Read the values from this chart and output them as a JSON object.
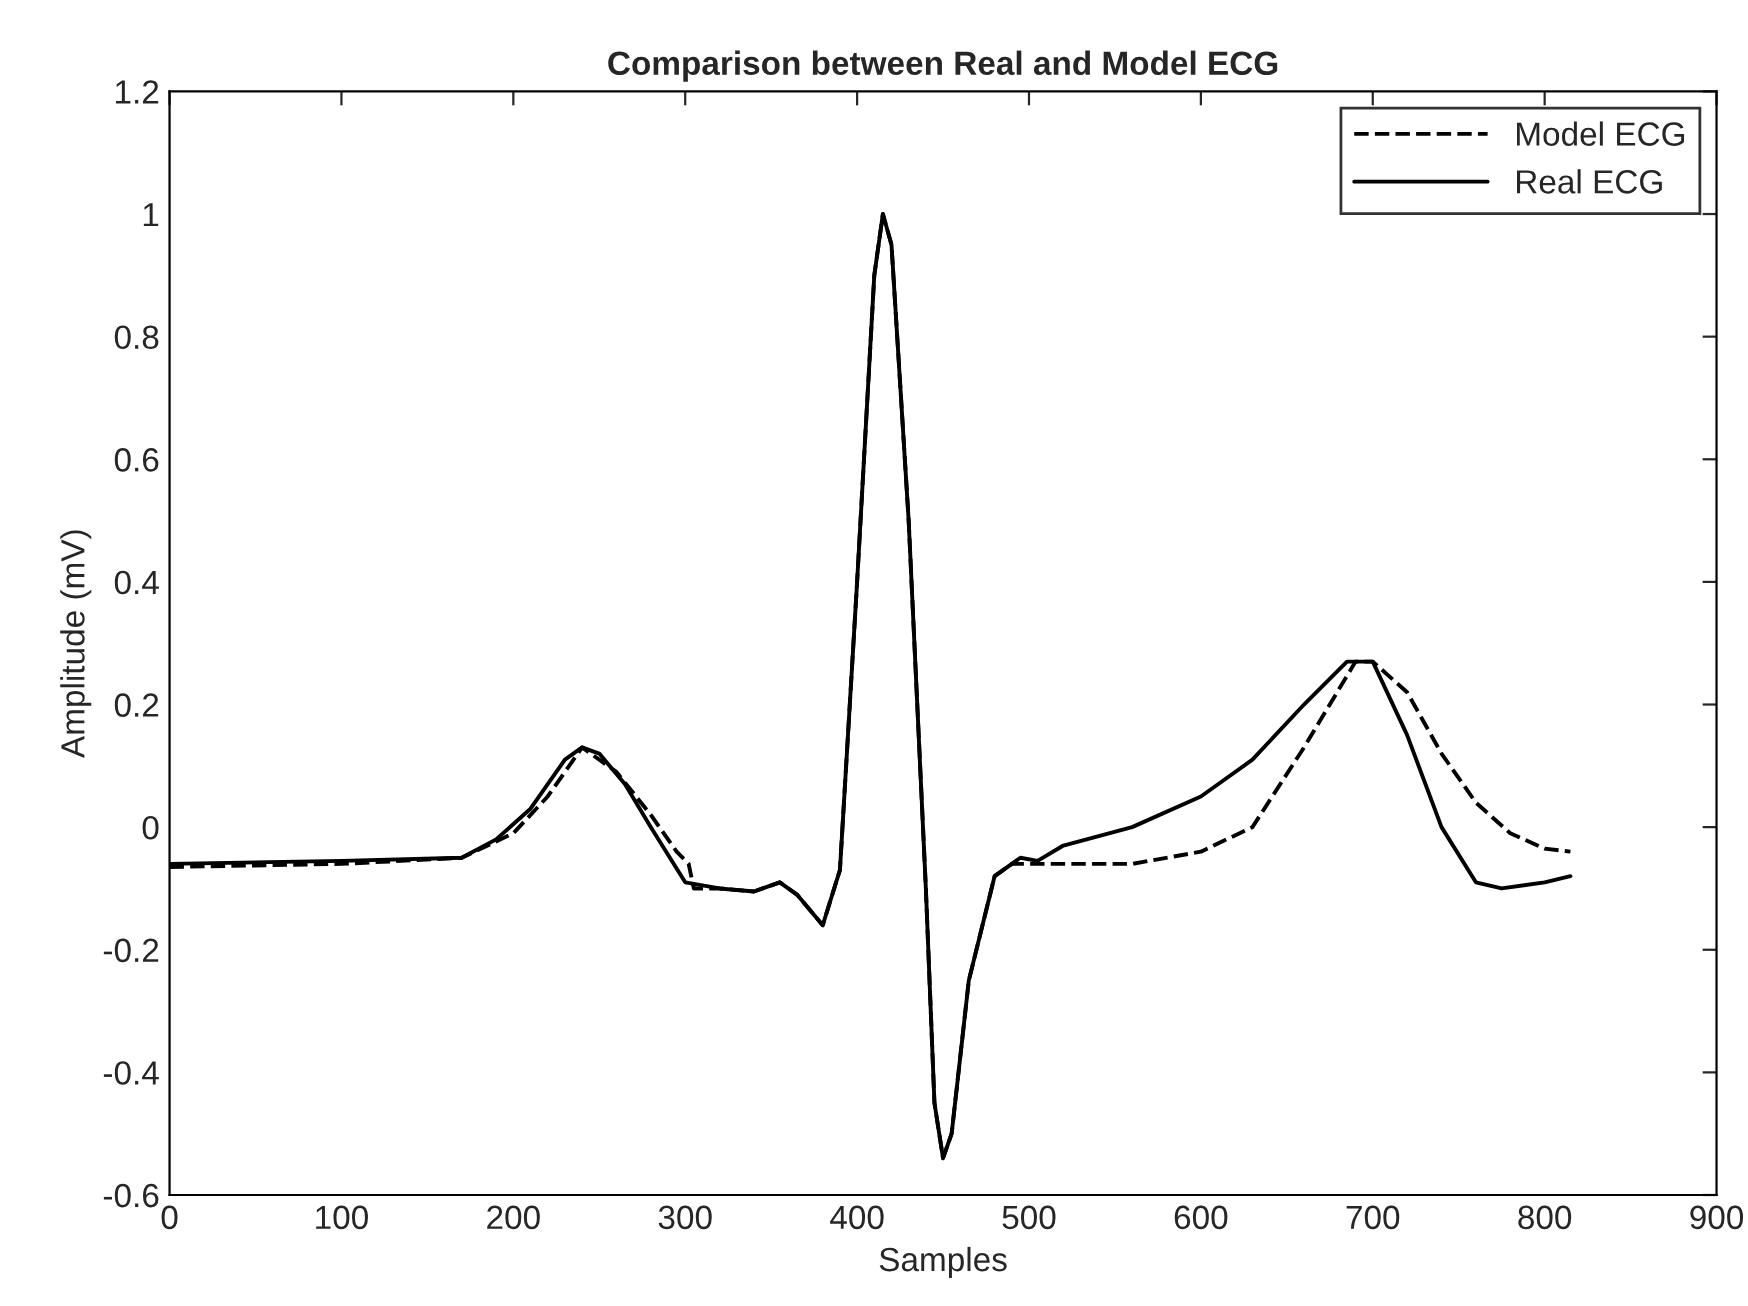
{
  "chart_data": {
    "type": "line",
    "title": "Comparison between Real and Model ECG",
    "xlabel": "Samples",
    "ylabel": "Amplitude (mV)",
    "xlim": [
      0,
      900
    ],
    "xticks": [
      0,
      100,
      200,
      300,
      400,
      500,
      600,
      700,
      800,
      900
    ],
    "ylim": [
      -0.6,
      1.2
    ],
    "yticks": [
      -0.6,
      -0.4,
      -0.2,
      0,
      0.2,
      0.4,
      0.6,
      0.8,
      1,
      1.2
    ],
    "grid": false,
    "legend": "top right",
    "marker": "none",
    "series": [
      {
        "name": "Model ECG",
        "color": "#000000",
        "line_style": "dashed",
        "x": [
          0,
          100,
          170,
          200,
          220,
          240,
          260,
          280,
          295,
          302,
          305,
          320,
          340,
          355,
          365,
          380,
          390,
          400,
          410,
          415,
          420,
          430,
          440,
          445,
          450,
          455,
          465,
          480,
          490,
          520,
          560,
          600,
          630,
          660,
          690,
          700,
          720,
          740,
          760,
          780,
          800,
          815
        ],
        "values": [
          -0.065,
          -0.06,
          -0.05,
          -0.01,
          0.05,
          0.13,
          0.09,
          0.02,
          -0.04,
          -0.06,
          -0.1,
          -0.1,
          -0.105,
          -0.09,
          -0.11,
          -0.16,
          -0.07,
          0.4,
          0.9,
          1.0,
          0.95,
          0.5,
          -0.1,
          -0.45,
          -0.54,
          -0.5,
          -0.25,
          -0.08,
          -0.06,
          -0.06,
          -0.06,
          -0.04,
          0.0,
          0.13,
          0.27,
          0.27,
          0.22,
          0.12,
          0.04,
          -0.01,
          -0.035,
          -0.04
        ]
      },
      {
        "name": "Real ECG",
        "color": "#000000",
        "line_style": "solid",
        "x": [
          0,
          100,
          170,
          190,
          210,
          230,
          240,
          250,
          265,
          280,
          300,
          320,
          340,
          355,
          365,
          380,
          390,
          400,
          410,
          415,
          420,
          430,
          440,
          445,
          450,
          455,
          465,
          480,
          495,
          505,
          520,
          560,
          600,
          630,
          660,
          685,
          700,
          720,
          740,
          760,
          775,
          800,
          815
        ],
        "values": [
          -0.06,
          -0.055,
          -0.05,
          -0.02,
          0.03,
          0.11,
          0.13,
          0.12,
          0.07,
          0.0,
          -0.09,
          -0.1,
          -0.105,
          -0.09,
          -0.11,
          -0.16,
          -0.07,
          0.4,
          0.9,
          1.0,
          0.95,
          0.5,
          -0.1,
          -0.45,
          -0.54,
          -0.5,
          -0.25,
          -0.08,
          -0.05,
          -0.055,
          -0.03,
          0.0,
          0.05,
          0.11,
          0.2,
          0.27,
          0.27,
          0.15,
          0.0,
          -0.09,
          -0.1,
          -0.09,
          -0.08
        ]
      }
    ]
  }
}
